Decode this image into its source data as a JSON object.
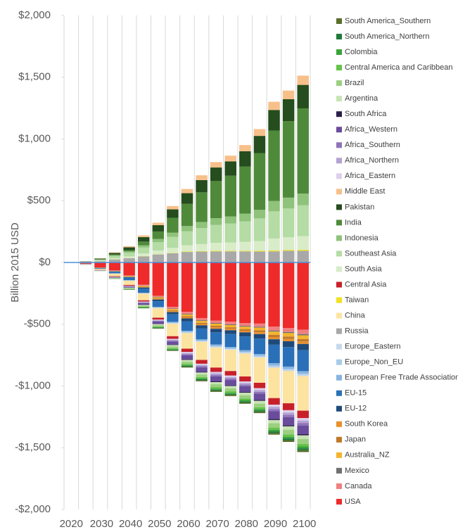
{
  "chart_data": {
    "type": "bar",
    "stacked": true,
    "y_label": "Billion 2015 USD",
    "categories": [
      "2020",
      null,
      "2030",
      null,
      "2040",
      null,
      "2050",
      null,
      "2060",
      null,
      "2070",
      null,
      "2080",
      null,
      "2090",
      null,
      "2100"
    ],
    "ylim": [
      -2000,
      2000
    ],
    "yticks": [
      {
        "value": 2000,
        "label": "$2,000"
      },
      {
        "value": 1500,
        "label": "$1,500"
      },
      {
        "value": 1000,
        "label": "$1,000"
      },
      {
        "value": 500,
        "label": "$500"
      },
      {
        "value": 0,
        "label": "$0"
      },
      {
        "value": -500,
        "label": "-$500"
      },
      {
        "value": -1000,
        "label": "-$1,000"
      },
      {
        "value": -1500,
        "label": "-$1,500"
      },
      {
        "value": -2000,
        "label": "-$2,000"
      }
    ],
    "series": [
      {
        "name": "South America_Southern",
        "color": "#5a6e2a",
        "values": [
          0,
          0,
          0,
          -1,
          -2,
          -3,
          -4,
          -5,
          -7,
          -8,
          -9,
          -9,
          -10,
          -11,
          -13,
          -14,
          -15
        ]
      },
      {
        "name": "South America_Northern",
        "color": "#1e7a3a",
        "values": [
          0,
          0,
          0,
          -1,
          -2,
          -3,
          -4,
          -5,
          -7,
          -8,
          -9,
          -9,
          -10,
          -11,
          -13,
          -14,
          -15
        ]
      },
      {
        "name": "Colombia",
        "color": "#3aa33a",
        "values": [
          0,
          0,
          0,
          -1,
          -2,
          -3,
          -4,
          -5,
          -7,
          -8,
          -9,
          -9,
          -10,
          -11,
          -13,
          -14,
          -15
        ]
      },
      {
        "name": "Central America and Caribbean",
        "color": "#66c24a",
        "values": [
          0,
          0,
          -1,
          -1,
          -2,
          -4,
          -5,
          -7,
          -9,
          -10,
          -12,
          -12,
          -13,
          -15,
          -18,
          -19,
          -20
        ]
      },
      {
        "name": "Brazil",
        "color": "#9ccf80",
        "values": [
          0,
          0,
          -1,
          -3,
          -5,
          -8,
          -11,
          -14,
          -18,
          -21,
          -23,
          -24,
          -26,
          -29,
          -35,
          -37,
          -40
        ]
      },
      {
        "name": "Argentina",
        "color": "#c8e4b4",
        "values": [
          0,
          0,
          -1,
          -2,
          -4,
          -6,
          -8,
          -11,
          -14,
          -16,
          -17,
          -18,
          -20,
          -22,
          -26,
          -28,
          -30
        ]
      },
      {
        "name": "South Africa",
        "color": "#2b1f4a",
        "values": [
          0,
          0,
          0,
          -1,
          -1,
          -2,
          -3,
          -4,
          -5,
          -5,
          -6,
          -6,
          -7,
          -7,
          -9,
          -9,
          -10
        ]
      },
      {
        "name": "Africa_Western",
        "color": "#6a4c9c",
        "values": [
          0,
          -1,
          -2,
          -5,
          -8,
          -13,
          -19,
          -25,
          -32,
          -36,
          -41,
          -43,
          -46,
          -51,
          -62,
          -65,
          -70
        ]
      },
      {
        "name": "Africa_Southern",
        "color": "#8e74b8",
        "values": [
          0,
          0,
          -1,
          -1,
          -2,
          -4,
          -5,
          -7,
          -9,
          -10,
          -12,
          -12,
          -13,
          -15,
          -18,
          -19,
          -20
        ]
      },
      {
        "name": "Africa_Northern",
        "color": "#b4a2d4",
        "values": [
          0,
          0,
          -1,
          -1,
          -2,
          -4,
          -5,
          -7,
          -9,
          -10,
          -12,
          -12,
          -13,
          -15,
          -18,
          -19,
          -20
        ]
      },
      {
        "name": "Africa_Eastern",
        "color": "#dcd0ec",
        "values": [
          0,
          0,
          -1,
          -1,
          -2,
          -4,
          -5,
          -7,
          -9,
          -10,
          -12,
          -12,
          -13,
          -15,
          -18,
          -19,
          -20
        ]
      },
      {
        "name": "Middle East",
        "color": "#f7c08a",
        "values": [
          0,
          1,
          2,
          5,
          9,
          14,
          20,
          27,
          34,
          39,
          44,
          46,
          50,
          55,
          66,
          70,
          75
        ]
      },
      {
        "name": "Pakistan",
        "color": "#254d1e",
        "values": [
          0,
          2,
          6,
          13,
          23,
          36,
          51,
          68,
          86,
          99,
          110,
          116,
          125,
          139,
          167,
          177,
          190
        ]
      },
      {
        "name": "India",
        "color": "#4f8a3a",
        "values": [
          0,
          0,
          2,
          5,
          10,
          30,
          60,
          120,
          180,
          240,
          300,
          330,
          380,
          460,
          570,
          620,
          690
        ]
      },
      {
        "name": "Indonesia",
        "color": "#8fc27a",
        "values": [
          0,
          1,
          3,
          7,
          11,
          18,
          26,
          34,
          43,
          49,
          55,
          58,
          63,
          69,
          84,
          88,
          95
        ]
      },
      {
        "name": "Southeast Asia",
        "color": "#b4dca4",
        "values": [
          0,
          3,
          8,
          18,
          30,
          48,
          68,
          90,
          113,
          130,
          145,
          153,
          165,
          183,
          220,
          233,
          250
        ]
      },
      {
        "name": "South Asia",
        "color": "#d8ecc8",
        "values": [
          0,
          1,
          3,
          8,
          13,
          21,
          30,
          40,
          50,
          57,
          64,
          67,
          73,
          80,
          97,
          102,
          110
        ]
      },
      {
        "name": "Central Asia",
        "color": "#c8202a",
        "values": [
          0,
          -1,
          -2,
          -4,
          -7,
          -11,
          -16,
          -22,
          -27,
          -31,
          -35,
          -37,
          -40,
          -44,
          -53,
          -56,
          -60
        ]
      },
      {
        "name": "Taiwan",
        "color": "#f0e020",
        "values": [
          0,
          0,
          0,
          1,
          1,
          2,
          2,
          3,
          4,
          4,
          5,
          5,
          5,
          6,
          7,
          7,
          8
        ]
      },
      {
        "name": "China",
        "color": "#fde3a0",
        "values": [
          0,
          -3,
          -8,
          -20,
          -34,
          -53,
          -76,
          -101,
          -126,
          -146,
          -162,
          -171,
          -185,
          -204,
          -246,
          -260,
          -280
        ]
      },
      {
        "name": "Russia",
        "color": "#a8a8a8",
        "values": [
          0,
          2,
          10,
          25,
          35,
          50,
          65,
          75,
          85,
          88,
          90,
          90,
          90,
          88,
          90,
          95,
          95
        ]
      },
      {
        "name": "Europe_Eastern",
        "color": "#c8d8ec",
        "values": [
          0,
          0,
          0,
          -1,
          -1,
          -2,
          -3,
          -4,
          -5,
          -5,
          -6,
          -6,
          -7,
          -7,
          -9,
          -9,
          -10
        ]
      },
      {
        "name": "Europe_Non_EU",
        "color": "#a8cce8",
        "values": [
          0,
          0,
          0,
          -1,
          -1,
          -2,
          -3,
          -4,
          -5,
          -5,
          -6,
          -6,
          -7,
          -7,
          -9,
          -9,
          -10
        ]
      },
      {
        "name": "European Free Trade Association",
        "color": "#88b4e0",
        "values": [
          0,
          0,
          -1,
          -1,
          -2,
          -4,
          -5,
          -7,
          -9,
          -10,
          -12,
          -12,
          -13,
          -15,
          -18,
          -19,
          -20
        ]
      },
      {
        "name": "EU-15",
        "color": "#2a70b8",
        "values": [
          0,
          -2,
          -5,
          -12,
          -20,
          -32,
          -46,
          -61,
          -77,
          -88,
          -99,
          -104,
          -112,
          -124,
          -150,
          -158,
          -170
        ]
      },
      {
        "name": "EU-12",
        "color": "#1e4a7a",
        "values": [
          0,
          -1,
          -2,
          -4,
          -6,
          -10,
          -14,
          -18,
          -23,
          -26,
          -29,
          -31,
          -33,
          -37,
          -44,
          -47,
          -50
        ]
      },
      {
        "name": "South Korea",
        "color": "#e8902c",
        "values": [
          0,
          0,
          -1,
          -1,
          -2,
          -4,
          -5,
          -7,
          -9,
          -10,
          -12,
          -12,
          -13,
          -15,
          -18,
          -19,
          -20
        ]
      },
      {
        "name": "Japan",
        "color": "#c0782a",
        "values": [
          0,
          0,
          -1,
          -1,
          -2,
          -4,
          -5,
          -7,
          -9,
          -10,
          -12,
          -12,
          -13,
          -15,
          -18,
          -19,
          -20
        ]
      },
      {
        "name": "Australia_NZ",
        "color": "#f4b42c",
        "values": [
          0,
          0,
          -1,
          -2,
          -4,
          -6,
          -8,
          -11,
          -14,
          -16,
          -17,
          -18,
          -20,
          -22,
          -26,
          -28,
          -30
        ]
      },
      {
        "name": "Mexico",
        "color": "#707070",
        "values": [
          0,
          0,
          0,
          -1,
          -1,
          -2,
          -3,
          -4,
          -5,
          -5,
          -6,
          -6,
          -7,
          -7,
          -9,
          -9,
          -10
        ]
      },
      {
        "name": "Canada",
        "color": "#f08080",
        "values": [
          0,
          0,
          -1,
          -2,
          -4,
          -7,
          -9,
          -13,
          -16,
          -18,
          -20,
          -21,
          -23,
          -26,
          -31,
          -33,
          -35
        ]
      },
      {
        "name": "USA",
        "color": "#ee2a2a",
        "values": [
          0,
          -10,
          -40,
          -65,
          -105,
          -180,
          -270,
          -360,
          -400,
          -450,
          -470,
          -480,
          -490,
          -495,
          -520,
          -530,
          -545
        ]
      }
    ]
  }
}
